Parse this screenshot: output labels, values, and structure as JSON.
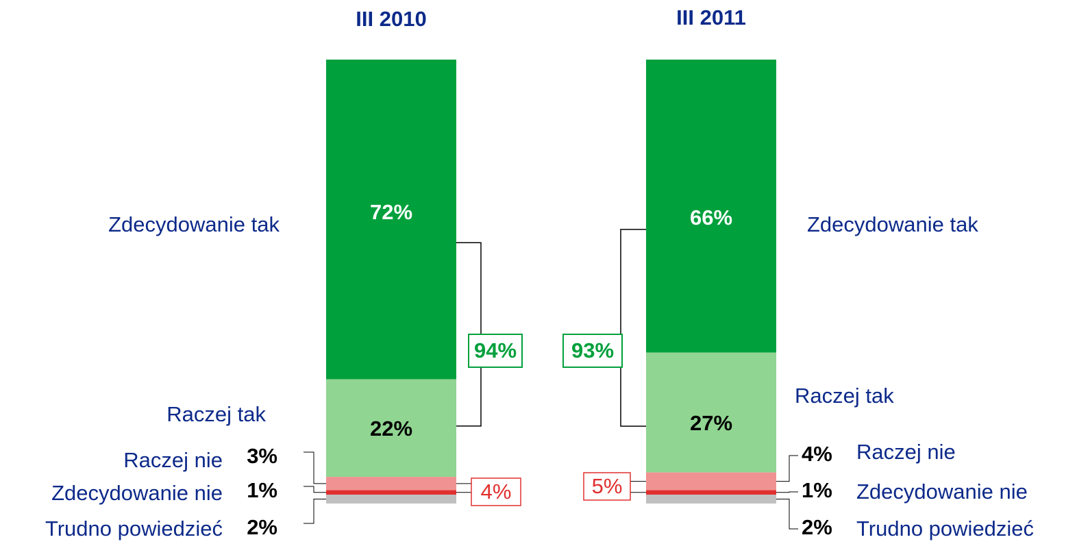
{
  "chart_data": {
    "type": "bar",
    "stacked": true,
    "categories": [
      "III 2010",
      "III 2011"
    ],
    "ylim": [
      0,
      100
    ],
    "series": [
      {
        "name": "Zdecydowanie tak",
        "color": "#00a03c",
        "label_color": "#ffffff",
        "values": [
          72,
          66
        ],
        "value_labels": [
          "72%",
          "66%"
        ]
      },
      {
        "name": "Raczej tak",
        "color": "#90d592",
        "label_color": "#000000",
        "values": [
          22,
          27
        ],
        "value_labels": [
          "22%",
          "27%"
        ]
      },
      {
        "name": "Raczej nie",
        "color": "#f09292",
        "label_color": "#000000",
        "values": [
          3,
          4
        ],
        "value_labels": [
          "3%",
          "4%"
        ]
      },
      {
        "name": "Zdecydowanie nie",
        "color": "#e0302e",
        "label_color": "#000000",
        "values": [
          1,
          1
        ],
        "value_labels": [
          "1%",
          "1%"
        ]
      },
      {
        "name": "Trudno powiedzieć",
        "color": "#c0c0c0",
        "label_color": "#000000",
        "values": [
          2,
          2
        ],
        "value_labels": [
          "2%",
          "2%"
        ]
      }
    ],
    "totals": {
      "positive": {
        "color": "#00a03c",
        "values": [
          94,
          93
        ],
        "value_labels": [
          "94%",
          "93%"
        ]
      },
      "negative": {
        "color": "#e0302e",
        "values": [
          4,
          5
        ],
        "value_labels": [
          "4%",
          "5%"
        ]
      }
    }
  }
}
